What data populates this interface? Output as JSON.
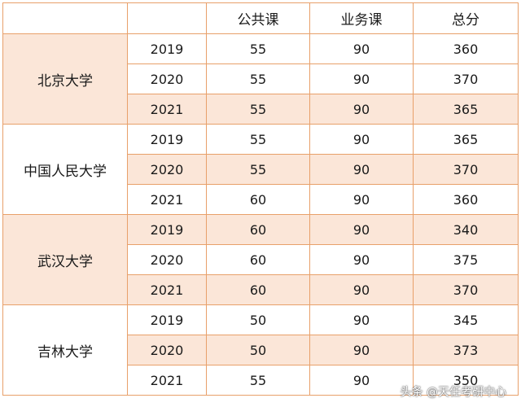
{
  "table": {
    "headers": [
      "",
      "",
      "公共课",
      "业务课",
      "总分"
    ],
    "universities": [
      {
        "name": "北京大学",
        "rows": [
          {
            "year": "2019",
            "public": "55",
            "major": "90",
            "total": "360"
          },
          {
            "year": "2020",
            "public": "55",
            "major": "90",
            "total": "370"
          },
          {
            "year": "2021",
            "public": "55",
            "major": "90",
            "total": "365"
          }
        ]
      },
      {
        "name": "中国人民大学",
        "rows": [
          {
            "year": "2019",
            "public": "55",
            "major": "90",
            "total": "365"
          },
          {
            "year": "2020",
            "public": "55",
            "major": "90",
            "total": "370"
          },
          {
            "year": "2021",
            "public": "60",
            "major": "90",
            "total": "360"
          }
        ]
      },
      {
        "name": "武汉大学",
        "rows": [
          {
            "year": "2019",
            "public": "60",
            "major": "90",
            "total": "340"
          },
          {
            "year": "2020",
            "public": "60",
            "major": "90",
            "total": "375"
          },
          {
            "year": "2021",
            "public": "60",
            "major": "90",
            "total": "370"
          }
        ]
      },
      {
        "name": "吉林大学",
        "rows": [
          {
            "year": "2019",
            "public": "50",
            "major": "90",
            "total": "345"
          },
          {
            "year": "2020",
            "public": "50",
            "major": "90",
            "total": "373"
          },
          {
            "year": "2021",
            "public": "55",
            "major": "90",
            "total": "350"
          }
        ]
      }
    ]
  },
  "watermark": "头条 @天任考研中心",
  "colors": {
    "border": "#e8a06a",
    "shade": "#fbe6d8"
  }
}
